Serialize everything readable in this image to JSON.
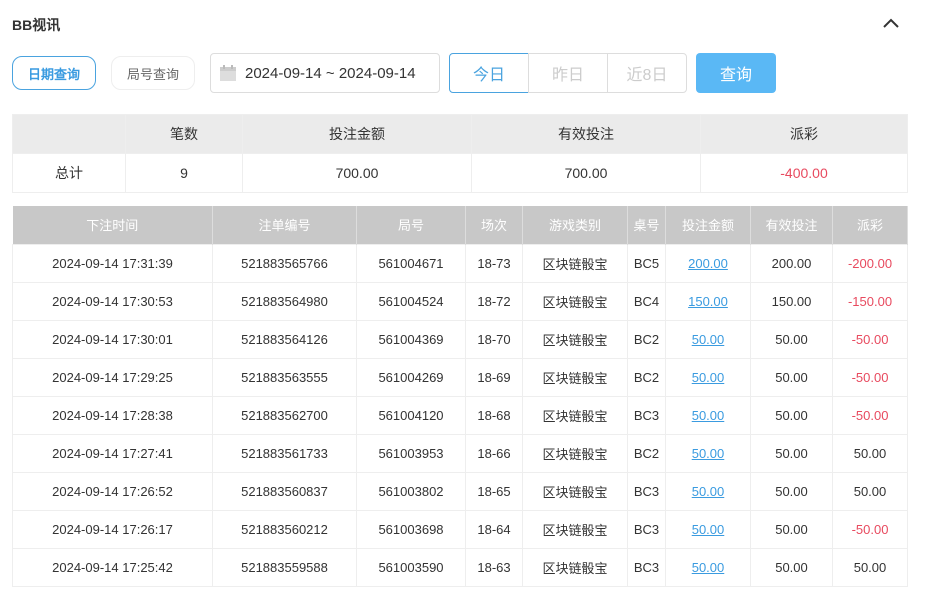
{
  "title": "BB视讯",
  "filters": {
    "date_query": "日期查询",
    "round_query": "局号查询",
    "date_range": "2024-09-14 ~ 2024-09-14",
    "today": "今日",
    "yesterday": "昨日",
    "last8": "近8日",
    "query": "查询"
  },
  "summary": {
    "headers": [
      "",
      "笔数",
      "投注金额",
      "有效投注",
      "派彩"
    ],
    "row": [
      "总计",
      "9",
      "700.00",
      "700.00",
      "-400.00"
    ]
  },
  "table": {
    "headers": [
      "下注时间",
      "注单编号",
      "局号",
      "场次",
      "游戏类别",
      "桌号",
      "投注金额",
      "有效投注",
      "派彩"
    ],
    "rows": [
      [
        "2024-09-14 17:31:39",
        "521883565766",
        "561004671",
        "18-73",
        "区块链骰宝",
        "BC5",
        "200.00",
        "200.00",
        "-200.00"
      ],
      [
        "2024-09-14 17:30:53",
        "521883564980",
        "561004524",
        "18-72",
        "区块链骰宝",
        "BC4",
        "150.00",
        "150.00",
        "-150.00"
      ],
      [
        "2024-09-14 17:30:01",
        "521883564126",
        "561004369",
        "18-70",
        "区块链骰宝",
        "BC2",
        "50.00",
        "50.00",
        "-50.00"
      ],
      [
        "2024-09-14 17:29:25",
        "521883563555",
        "561004269",
        "18-69",
        "区块链骰宝",
        "BC2",
        "50.00",
        "50.00",
        "-50.00"
      ],
      [
        "2024-09-14 17:28:38",
        "521883562700",
        "561004120",
        "18-68",
        "区块链骰宝",
        "BC3",
        "50.00",
        "50.00",
        "-50.00"
      ],
      [
        "2024-09-14 17:27:41",
        "521883561733",
        "561003953",
        "18-66",
        "区块链骰宝",
        "BC2",
        "50.00",
        "50.00",
        "50.00"
      ],
      [
        "2024-09-14 17:26:52",
        "521883560837",
        "561003802",
        "18-65",
        "区块链骰宝",
        "BC3",
        "50.00",
        "50.00",
        "50.00"
      ],
      [
        "2024-09-14 17:26:17",
        "521883560212",
        "561003698",
        "18-64",
        "区块链骰宝",
        "BC3",
        "50.00",
        "50.00",
        "-50.00"
      ],
      [
        "2024-09-14 17:25:42",
        "521883559588",
        "561003590",
        "18-63",
        "区块链骰宝",
        "BC3",
        "50.00",
        "50.00",
        "50.00"
      ]
    ]
  },
  "colors": {
    "accent": "#3a9be0",
    "negative": "#e84a5f",
    "header": "#c8c8c8"
  }
}
